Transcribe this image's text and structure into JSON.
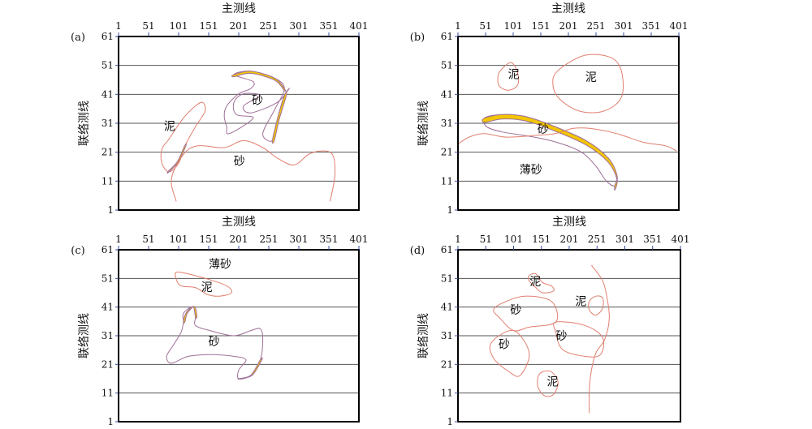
{
  "x_axis_title": "主测线",
  "y_axis_title": "联络测线",
  "x_ticks": [
    "1",
    "51",
    "101",
    "151",
    "201",
    "251",
    "301",
    "351",
    "401"
  ],
  "y_ticks": [
    "61",
    "51",
    "41",
    "31",
    "21",
    "11",
    "1"
  ],
  "colors": {
    "mud_outline": "#e08070",
    "sand_outline": "#a07098",
    "sand_fill": "#f2c600",
    "gridline": "#555555",
    "frame": "#000000"
  },
  "panels": [
    {
      "id": "a",
      "label": "(a)",
      "regions": [
        {
          "label": "泥",
          "x": 86,
          "y": 30
        },
        {
          "label": "砂",
          "x": 232,
          "y": 39
        },
        {
          "label": "砂",
          "x": 202,
          "y": 18
        }
      ]
    },
    {
      "id": "b",
      "label": "(b)",
      "regions": [
        {
          "label": "泥",
          "x": 102,
          "y": 48
        },
        {
          "label": "泥",
          "x": 242,
          "y": 47
        },
        {
          "label": "砂",
          "x": 155,
          "y": 29
        },
        {
          "label": "薄砂",
          "x": 133,
          "y": 15
        }
      ]
    },
    {
      "id": "c",
      "label": "(c)",
      "regions": [
        {
          "label": "薄砂",
          "x": 170,
          "y": 56
        },
        {
          "label": "泥",
          "x": 148,
          "y": 48
        },
        {
          "label": "砂",
          "x": 160,
          "y": 29
        }
      ]
    },
    {
      "id": "d",
      "label": "(d)",
      "regions": [
        {
          "label": "泥",
          "x": 140,
          "y": 50
        },
        {
          "label": "砂",
          "x": 105,
          "y": 40
        },
        {
          "label": "泥",
          "x": 222,
          "y": 43
        },
        {
          "label": "砂",
          "x": 84,
          "y": 28
        },
        {
          "label": "砂",
          "x": 187,
          "y": 31
        },
        {
          "label": "泥",
          "x": 171,
          "y": 15
        }
      ]
    }
  ]
}
